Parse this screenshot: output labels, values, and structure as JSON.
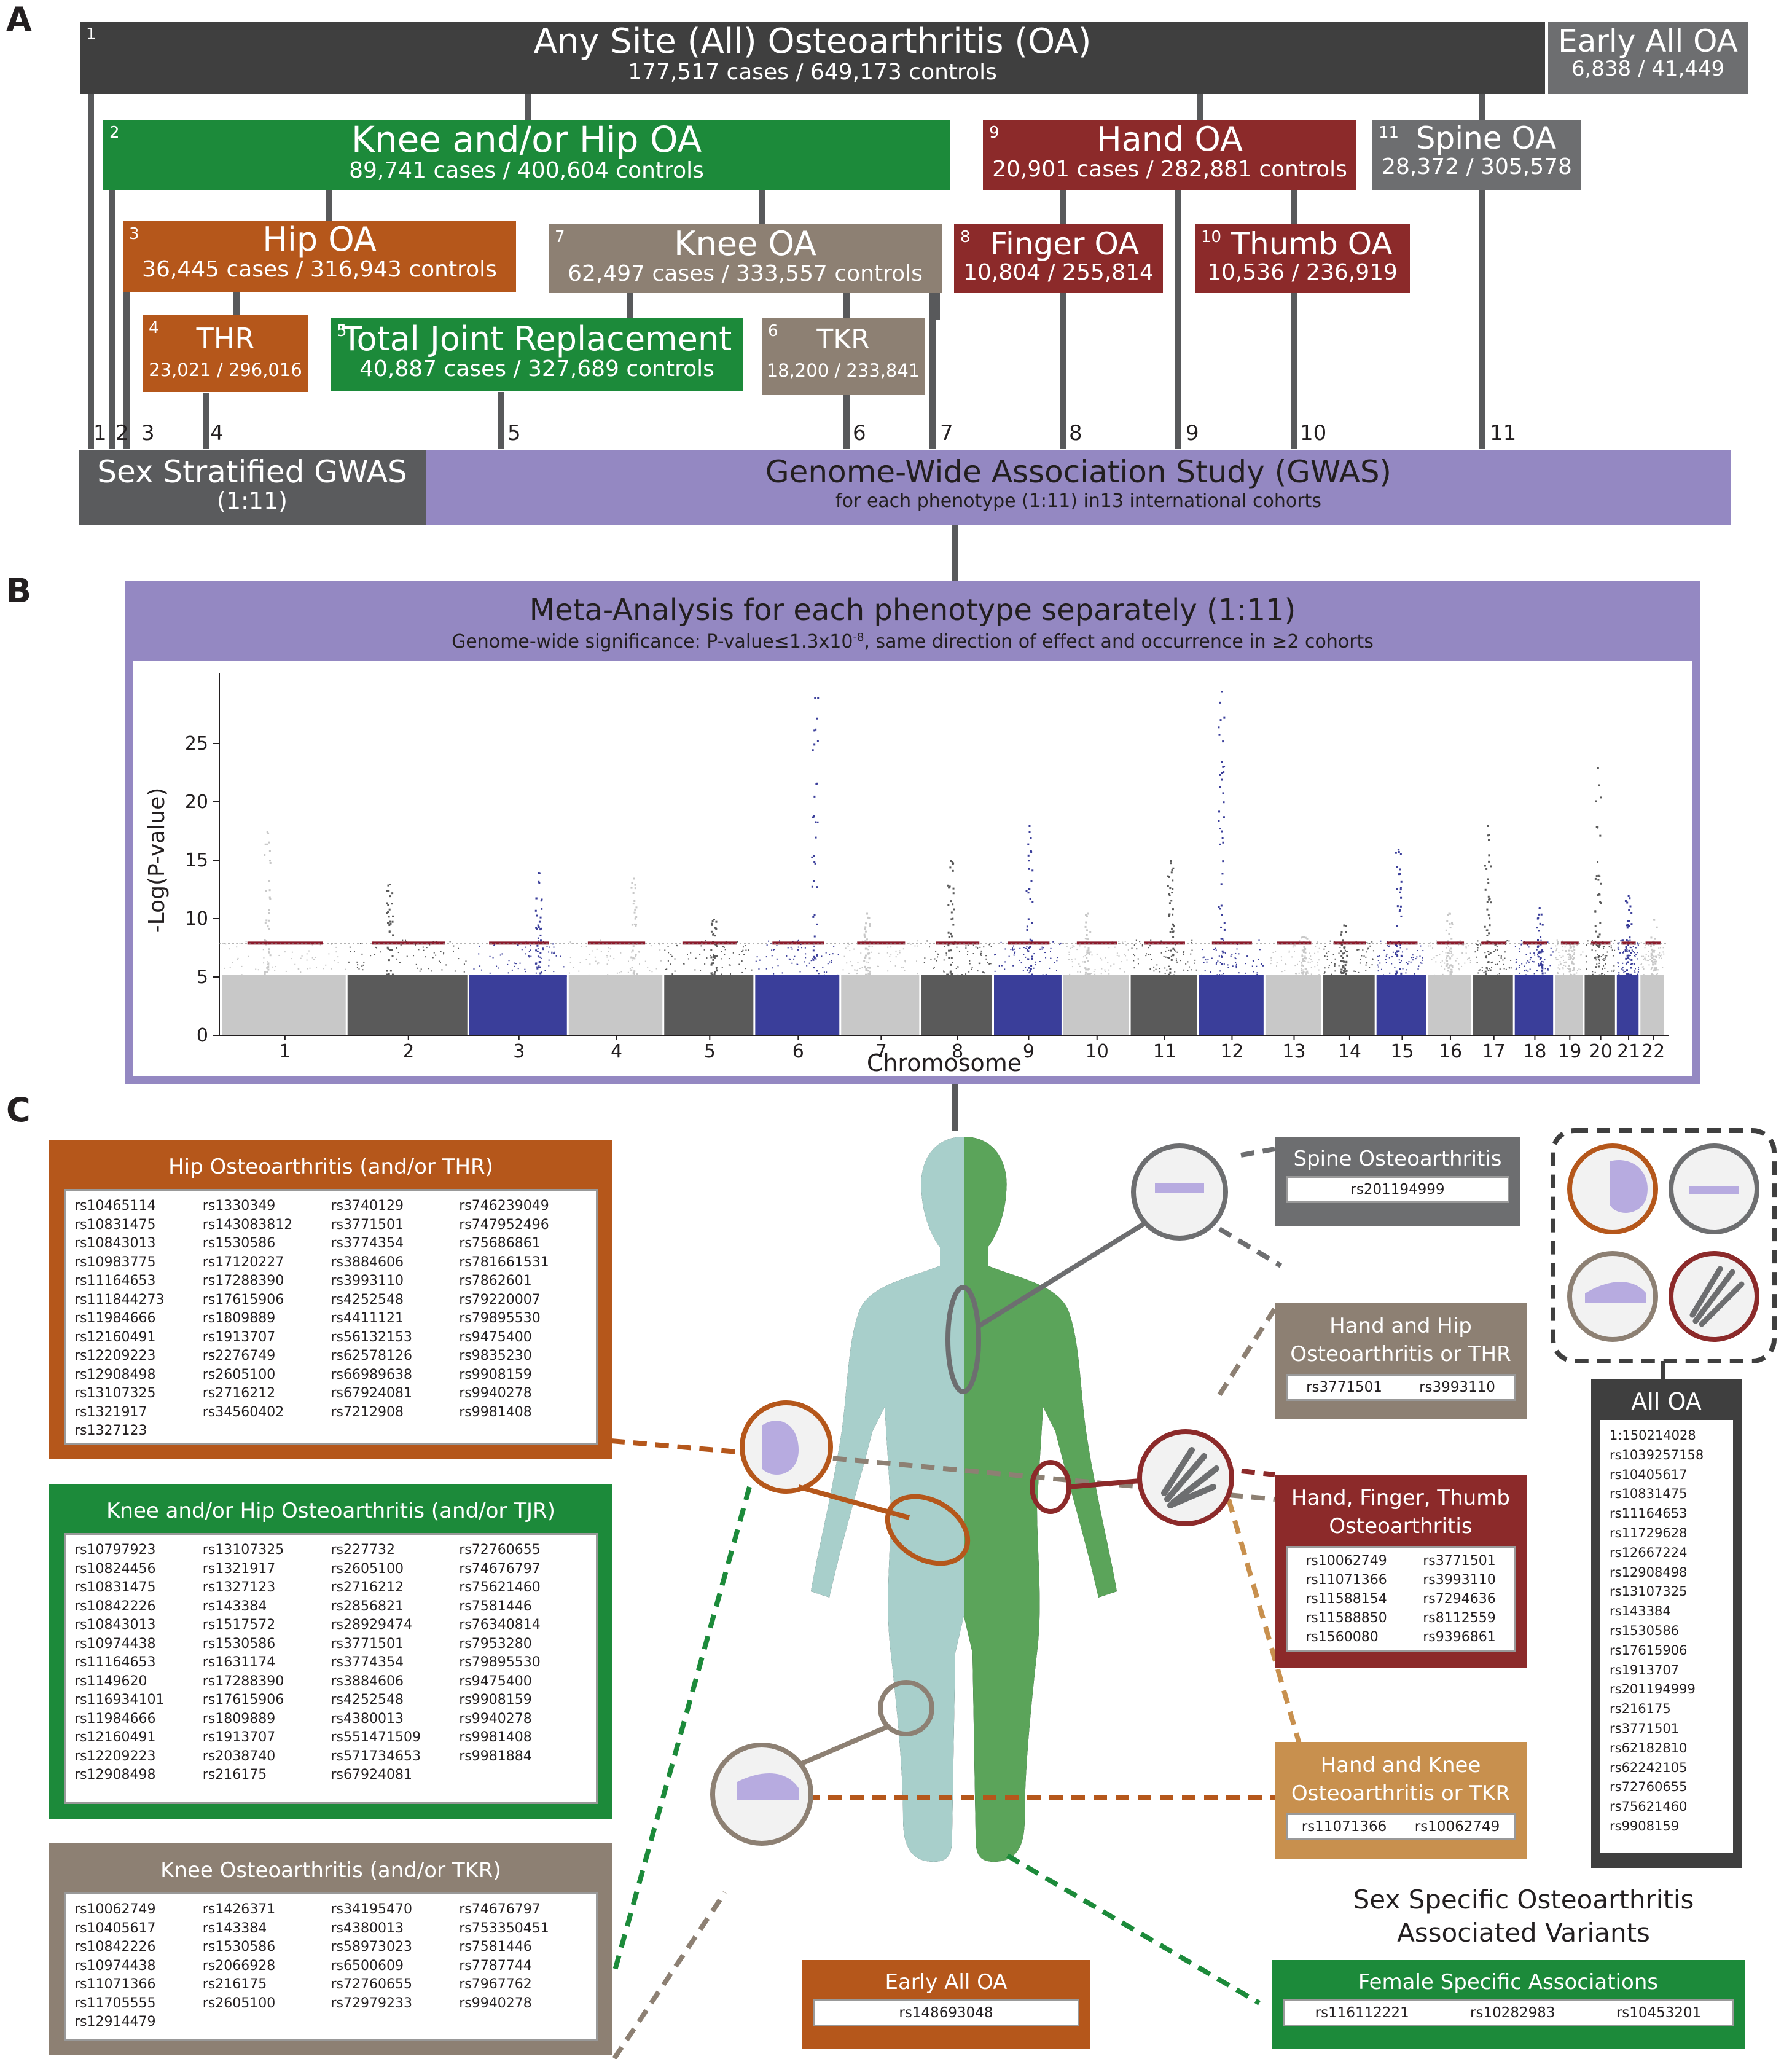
{
  "labels": {
    "A": "A",
    "B": "B",
    "C": "C"
  },
  "panelA": {
    "any_site": {
      "num": "1",
      "title": "Any Site (All) Osteoarthritis (OA)",
      "sub": "177,517 cases  / 649,173 controls"
    },
    "early_all": {
      "title": "Early All OA",
      "sub": "6,838  / 41,449"
    },
    "knee_hip": {
      "num": "2",
      "title": "Knee and/or Hip OA",
      "sub": "89,741 cases / 400,604 controls"
    },
    "hand": {
      "num": "9",
      "title": "Hand OA",
      "sub": "20,901 cases / 282,881 controls"
    },
    "spine": {
      "num": "11",
      "title": "Spine OA",
      "sub": "28,372 / 305,578"
    },
    "hip": {
      "num": "3",
      "title": "Hip OA",
      "sub": "36,445 cases  / 316,943 controls"
    },
    "knee": {
      "num": "7",
      "title": "Knee OA",
      "sub": "62,497 cases  / 333,557 controls"
    },
    "finger": {
      "num": "8",
      "title": "Finger OA",
      "sub": "10,804 / 255,814"
    },
    "thumb": {
      "num": "10",
      "title": "Thumb OA",
      "sub": "10,536 / 236,919"
    },
    "thr": {
      "num": "4",
      "title": "THR",
      "sub": "23,021 / 296,016"
    },
    "tjr": {
      "num": "5",
      "title": "Total Joint Replacement",
      "sub": "40,887 cases  / 327,689 controls"
    },
    "tkr": {
      "num": "6",
      "title": "TKR",
      "sub": "18,200 / 233,841"
    },
    "line_numbers": [
      "1",
      "2",
      "3",
      "4",
      "5",
      "6",
      "7",
      "8",
      "9",
      "10",
      "11"
    ],
    "sex_strat": {
      "title": "Sex Stratified GWAS",
      "sub": "(1:11)"
    },
    "gwas": {
      "title": "Genome-Wide Association Study (GWAS)",
      "sub": "for each phenotype (1:11) in13 international cohorts"
    }
  },
  "panelB": {
    "title": "Meta-Analysis for each phenotype separately (1:11)",
    "subtitle_pre": "Genome-wide significance: P-value≤1.3x10",
    "subtitle_exp": "-8",
    "subtitle_post": ", same direction of effect and occurrence in ≥2 cohorts"
  },
  "chart_data": {
    "type": "scatter",
    "title": "",
    "xlabel": "Chromosome",
    "ylabel": "-Log(P-value)",
    "ylim": [
      0,
      30
    ],
    "yticks": [
      0,
      5,
      10,
      15,
      20,
      25
    ],
    "categories": [
      "1",
      "2",
      "3",
      "4",
      "5",
      "6",
      "7",
      "8",
      "9",
      "10",
      "11",
      "12",
      "13",
      "14",
      "15",
      "16",
      "17",
      "18",
      "19",
      "20",
      "21",
      "22"
    ],
    "significance_line": 7.9,
    "peak_values": [
      17.5,
      13,
      14,
      13.5,
      10,
      29,
      10.5,
      15,
      18,
      10.5,
      15,
      29.5,
      8.5,
      9.5,
      16,
      10.5,
      18,
      11,
      8,
      23,
      12,
      10
    ],
    "colors": {
      "light": "#c8c8c8",
      "dark": "#5a5a5a",
      "highlight": "#3a3e9a",
      "sig_line": "#8b1a2b"
    }
  },
  "panelC": {
    "hip_list": {
      "title": "Hip Osteoarthritis (and/or THR)",
      "cols": [
        [
          "rs10465114",
          "rs10831475",
          "rs10843013",
          "rs10983775",
          "rs11164653",
          "rs111844273",
          "rs11984666",
          "rs12160491",
          "rs12209223",
          "rs12908498",
          "rs13107325",
          "rs1321917",
          "rs1327123"
        ],
        [
          "rs1330349",
          "rs143083812",
          "rs1530586",
          "rs17120227",
          "rs17288390",
          "rs17615906",
          "rs1809889",
          "rs1913707",
          "rs2276749",
          "rs2605100",
          "rs2716212",
          "rs34560402"
        ],
        [
          "rs3740129",
          "rs3771501",
          "rs3774354",
          "rs3884606",
          "rs3993110",
          "rs4252548",
          "rs4411121",
          "rs56132153",
          "rs62578126",
          "rs66989638",
          "rs67924081",
          "rs7212908"
        ],
        [
          "rs746239049",
          "rs747952496",
          "rs75686861",
          "rs781661531",
          "rs7862601",
          "rs79220007",
          "rs79895530",
          "rs9475400",
          "rs9835230",
          "rs9908159",
          "rs9940278",
          "rs9981408"
        ]
      ]
    },
    "kneehip_list": {
      "title": "Knee and/or Hip Osteoarthritis (and/or TJR)",
      "cols": [
        [
          "rs10797923",
          "rs10824456",
          "rs10831475",
          "rs10842226",
          "rs10843013",
          "rs10974438",
          "rs11164653",
          "rs1149620",
          "rs116934101",
          "rs11984666",
          "rs12160491",
          "rs12209223",
          "rs12908498"
        ],
        [
          "rs13107325",
          "rs1321917",
          "rs1327123",
          "rs143384",
          "rs1517572",
          "rs1530586",
          "rs1631174",
          "rs17288390",
          "rs17615906",
          "rs1809889",
          "rs1913707",
          "rs2038740",
          "rs216175"
        ],
        [
          "rs227732",
          "rs2605100",
          "rs2716212",
          "rs2856821",
          "rs28929474",
          "rs3771501",
          "rs3774354",
          "rs3884606",
          "rs4252548",
          "rs4380013",
          "rs551471509",
          "rs571734653",
          "rs67924081"
        ],
        [
          "rs72760655",
          "rs74676797",
          "rs75621460",
          "rs7581446",
          "rs76340814",
          "rs7953280",
          "rs79895530",
          "rs9475400",
          "rs9908159",
          "rs9940278",
          "rs9981408",
          "rs9981884"
        ]
      ]
    },
    "knee_list": {
      "title": "Knee Osteoarthritis (and/or TKR)",
      "cols": [
        [
          "rs10062749",
          "rs10405617",
          "rs10842226",
          "rs10974438",
          "rs11071366",
          "rs11705555",
          "rs12914479"
        ],
        [
          "rs1426371",
          "rs143384",
          "rs1530586",
          "rs2066928",
          "rs216175",
          "rs2605100"
        ],
        [
          "rs34195470",
          "rs4380013",
          "rs58973023",
          "rs6500609",
          "rs72760655",
          "rs72979233"
        ],
        [
          "rs74676797",
          "rs753350451",
          "rs7581446",
          "rs7787744",
          "rs7967762",
          "rs9940278"
        ]
      ]
    },
    "spine": {
      "title": "Spine Osteoarthritis",
      "values": [
        "rs201194999"
      ]
    },
    "hand_hip": {
      "title1": "Hand and Hip",
      "title2": "Osteoarthritis or THR",
      "values": [
        "rs3771501",
        "rs3993110"
      ]
    },
    "hand_finger": {
      "title1": "Hand, Finger, Thumb",
      "title2": "Osteoarthritis",
      "cols": [
        [
          "rs10062749",
          "rs11071366",
          "rs11588154",
          "rs11588850",
          "rs1560080"
        ],
        [
          "rs3771501",
          "rs3993110",
          "rs7294636",
          "rs8112559",
          "rs9396861"
        ]
      ]
    },
    "hand_knee": {
      "title1": "Hand and Knee",
      "title2": "Osteoarthritis or TKR",
      "values": [
        "rs11071366",
        "rs10062749"
      ]
    },
    "all_oa": {
      "title": "All OA",
      "values": [
        "1:150214028",
        "rs1039257158",
        "rs10405617",
        "rs10831475",
        "rs11164653",
        "rs11729628",
        "rs12667224",
        "rs12908498",
        "rs13107325",
        "rs143384",
        "rs1530586",
        "rs17615906",
        "rs1913707",
        "rs201194999",
        "rs216175",
        "rs3771501",
        "rs62182810",
        "rs62242105",
        "rs72760655",
        "rs75621460",
        "rs9908159"
      ]
    },
    "early": {
      "title": "Early All OA",
      "values": [
        "rs148693048"
      ]
    },
    "sex_title1": "Sex Specific Osteoarthritis",
    "sex_title2": "Associated Variants",
    "female": {
      "title": "Female Specific Associations",
      "values": [
        "rs116112221",
        "rs10282983",
        "rs10453201"
      ]
    }
  }
}
